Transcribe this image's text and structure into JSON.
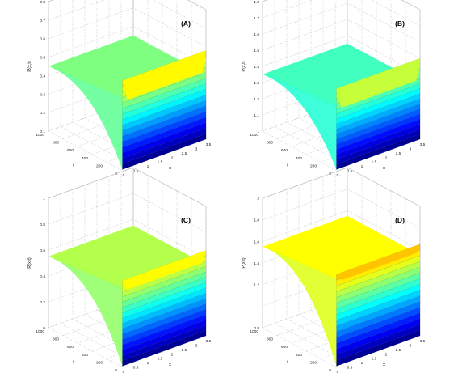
{
  "chart_data": [
    {
      "type": "surface",
      "label": "(A)",
      "zlabel": "R(x,t)",
      "xlabel": "x",
      "ylabel": "t",
      "xlim": [
        0,
        3.5
      ],
      "ylim": [
        0,
        1000
      ],
      "zlim": [
        0.1,
        0.8
      ],
      "xticks": [
        "0",
        "0.5",
        "1",
        "1.5",
        "2",
        "2.5",
        "3",
        "3.5"
      ],
      "yticks": [
        "0",
        "200",
        "400",
        "600",
        "800",
        "1000"
      ],
      "zticks": [
        "0.1",
        "0.2",
        "0.3",
        "0.4",
        "0.5",
        "0.6",
        "0.7",
        "0.8"
      ],
      "plateau_value": 0.45,
      "wall_max": 0.58,
      "wall_min": 0.1,
      "boundary_x": 0,
      "colormap": "jet"
    },
    {
      "type": "surface",
      "label": "(B)",
      "zlabel": "P(x,t)",
      "xlabel": "x",
      "ylabel": "t",
      "xlim": [
        0,
        3.5
      ],
      "ylim": [
        0,
        1000
      ],
      "zlim": [
        1,
        1.8
      ],
      "xticks": [
        "0",
        "0.5",
        "1",
        "1.5",
        "2",
        "2.5",
        "3",
        "3.5"
      ],
      "yticks": [
        "0",
        "200",
        "400",
        "600",
        "800",
        "1000"
      ],
      "zticks": [
        "1",
        "1.1",
        "1.2",
        "1.3",
        "1.4",
        "1.5",
        "1.6",
        "1.7",
        "1.8"
      ],
      "plateau_value": 1.35,
      "wall_max": 1.5,
      "wall_min": 1.0,
      "boundary_x": 0,
      "colormap": "jet"
    },
    {
      "type": "surface",
      "label": "(C)",
      "zlabel": "R(x,t)",
      "xlabel": "x",
      "ylabel": "t",
      "xlim": [
        0,
        3.5
      ],
      "ylim": [
        0,
        1000
      ],
      "zlim": [
        0,
        1
      ],
      "xticks": [
        "0",
        "0.5",
        "1",
        "1.5",
        "2",
        "2.5",
        "3",
        "3.5"
      ],
      "yticks": [
        "0",
        "200",
        "400",
        "600",
        "800",
        "1000"
      ],
      "zticks": [
        "0",
        "0.2",
        "0.4",
        "0.6",
        "0.8",
        "1"
      ],
      "plateau_value": 0.55,
      "wall_max": 0.66,
      "wall_min": 0.0,
      "boundary_x": 0,
      "colormap": "jet"
    },
    {
      "type": "surface",
      "label": "(D)",
      "zlabel": "P(x,t)",
      "xlabel": "x",
      "ylabel": "t",
      "xlim": [
        0,
        3.5
      ],
      "ylim": [
        0,
        1000
      ],
      "zlim": [
        0.8,
        2
      ],
      "xticks": [
        "0",
        "0.5",
        "1",
        "1.5",
        "2",
        "2.5",
        "3",
        "3.5"
      ],
      "yticks": [
        "0",
        "200",
        "400",
        "600",
        "800",
        "1000"
      ],
      "zticks": [
        "0.8",
        "1",
        "1.2",
        "1.4",
        "1.6",
        "1.8",
        "2"
      ],
      "plateau_value": 1.55,
      "wall_max": 1.65,
      "wall_min": 0.8,
      "boundary_x": 0,
      "colormap": "jet"
    }
  ]
}
